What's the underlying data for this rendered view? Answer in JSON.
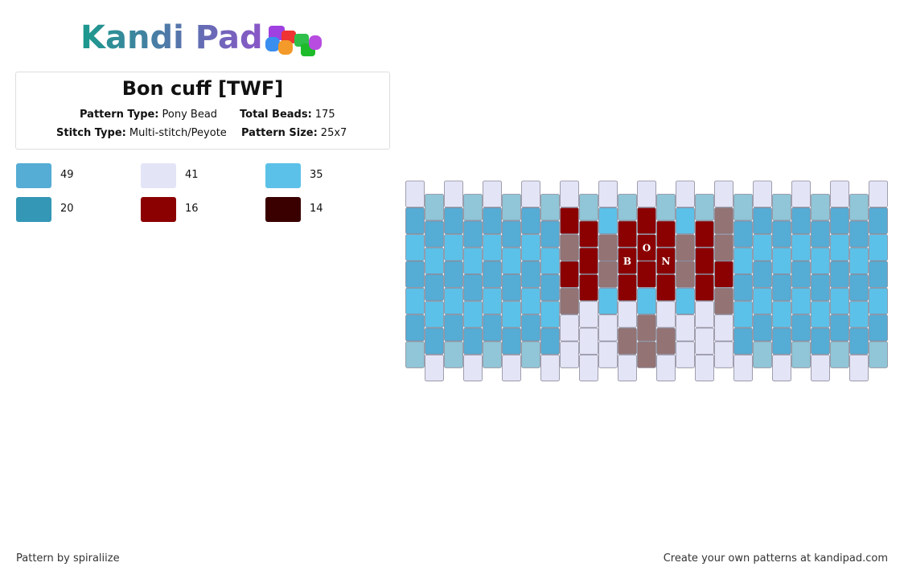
{
  "header": {
    "logo": "Kandi Pad",
    "title": "Bon cuff [TWF]",
    "fields": [
      {
        "label": "Pattern Type:",
        "value": "Pony Bead"
      },
      {
        "label": "Total Beads:",
        "value": "175"
      },
      {
        "label": "Stitch Type:",
        "value": "Multi-stitch/Peyote"
      },
      {
        "label": "Pattern Size:",
        "value": "25x7"
      }
    ]
  },
  "legend": [
    {
      "color": "#55acd4",
      "count": 49
    },
    {
      "color": "#e4e4f7",
      "count": 41
    },
    {
      "color": "#5cc1e8",
      "count": 35
    },
    {
      "color": "#3497b6",
      "count": 20
    },
    {
      "color": "#8b0000",
      "count": 16
    },
    {
      "color": "#3a0000",
      "count": 14
    }
  ],
  "bead_letters": [
    "B",
    "O",
    "N"
  ],
  "footer": {
    "author": "Pattern by spiraliize",
    "link": "Create your own patterns at kandipad.com"
  }
}
